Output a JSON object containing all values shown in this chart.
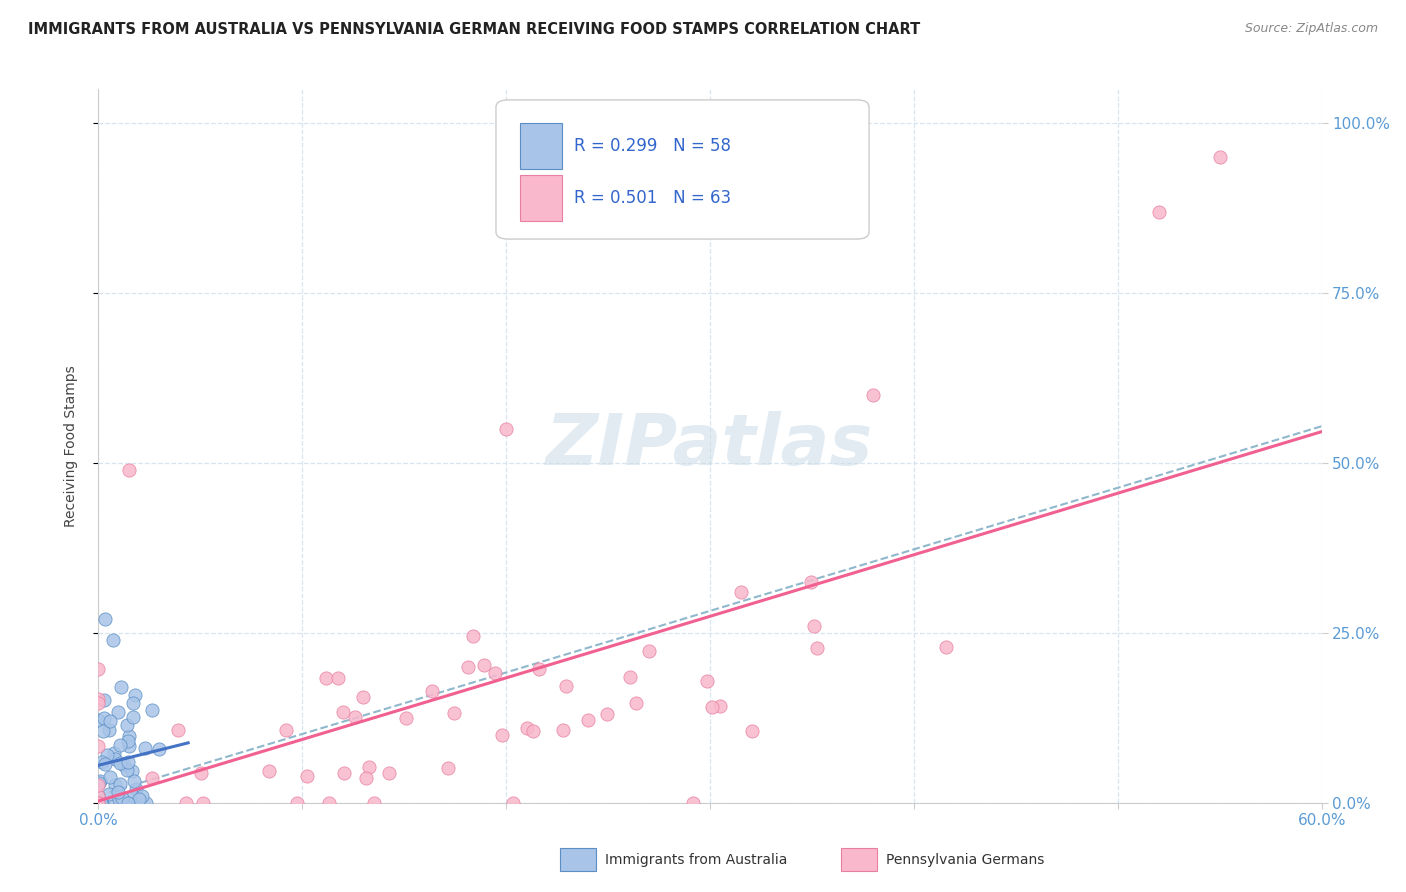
{
  "title": "IMMIGRANTS FROM AUSTRALIA VS PENNSYLVANIA GERMAN RECEIVING FOOD STAMPS CORRELATION CHART",
  "source": "Source: ZipAtlas.com",
  "ylabel": "Receiving Food Stamps",
  "yticks": [
    "0.0%",
    "25.0%",
    "50.0%",
    "75.0%",
    "100.0%"
  ],
  "ytick_vals": [
    0.0,
    0.25,
    0.5,
    0.75,
    1.0
  ],
  "xlim": [
    0.0,
    0.6
  ],
  "ylim": [
    0.0,
    1.05
  ],
  "legend1_R": "0.299",
  "legend1_N": "58",
  "legend2_R": "0.501",
  "legend2_N": "63",
  "color_australia_fill": "#a8c4e8",
  "color_australia_edge": "#5b8fc4",
  "color_pa_fill": "#f9b8cc",
  "color_pa_edge": "#e87fa0",
  "color_line_australia": "#4472c4",
  "color_line_pa": "#f06090",
  "color_dashed": "#90b8cc",
  "watermark_color": "#d8e8f0",
  "grid_color": "#d8e4f0",
  "title_color": "#222222",
  "source_color": "#888888",
  "tick_color": "#5b9bd5",
  "ylabel_color": "#444444"
}
